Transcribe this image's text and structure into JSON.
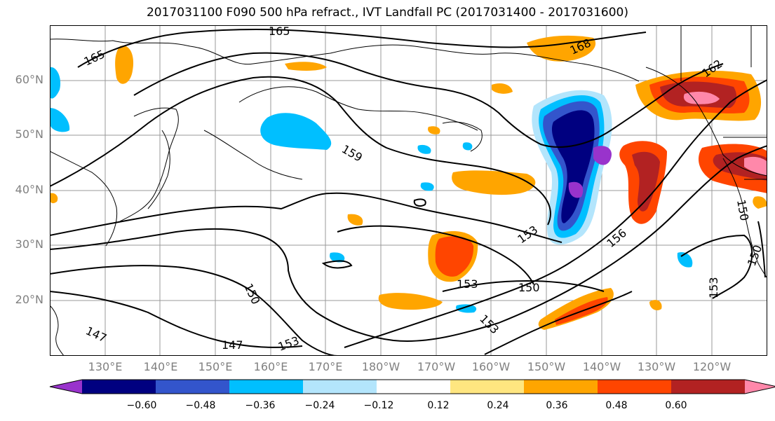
{
  "title": "2017031100 F090 500 hPa refract., IVT Landfall PC (2017031400 - 2017031600)",
  "lat_labels": [
    "60°N",
    "50°N",
    "40°N",
    "30°N",
    "20°N"
  ],
  "lon_labels": [
    "130°E",
    "140°E",
    "150°E",
    "160°E",
    "170°E",
    "180°W",
    "170°W",
    "160°W",
    "150°W",
    "140°W",
    "130°W",
    "120°W"
  ],
  "contour_labels": [
    "165",
    "165",
    "168",
    "162",
    "159",
    "153",
    "156",
    "150",
    "153",
    "150",
    "153",
    "147",
    "147",
    "153",
    "150",
    "153",
    "150"
  ],
  "colorbar": {
    "ticks": [
      "−0.60",
      "−0.48",
      "−0.36",
      "−0.24",
      "−0.12",
      "0.12",
      "0.24",
      "0.36",
      "0.48",
      "0.60"
    ],
    "colors": [
      "#9933cc",
      "#000080",
      "#3355cc",
      "#00bfff",
      "#b3e5fc",
      "#ffffff",
      "#ffe680",
      "#ffa500",
      "#ff4500",
      "#b22222",
      "#ff88aa"
    ]
  }
}
